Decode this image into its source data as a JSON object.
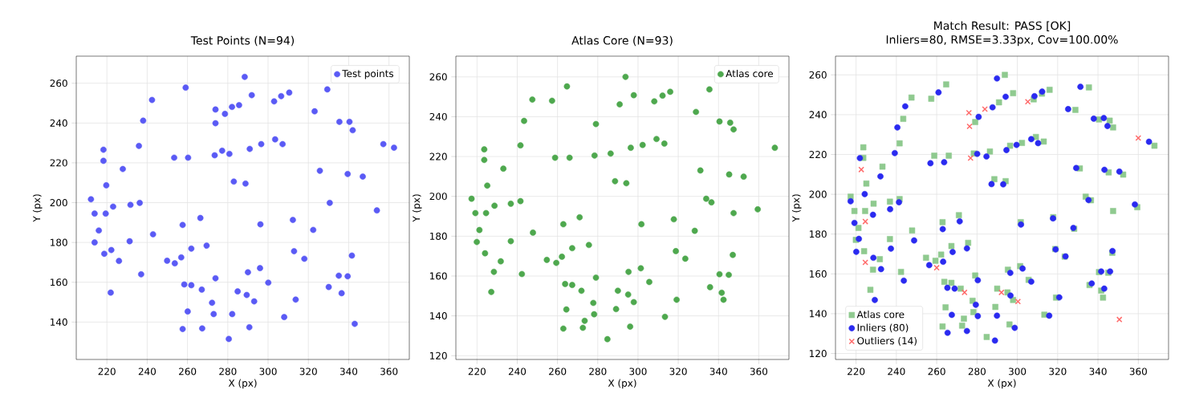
{
  "chart_data": [
    {
      "type": "scatter",
      "title": "Test Points (N=94)",
      "xlabel": "X (px)",
      "ylabel": "Y (px)",
      "xlim": [
        204.8,
        370.1
      ],
      "ylim": [
        121.2,
        273.6
      ],
      "xticks": [
        220,
        240,
        260,
        280,
        300,
        320,
        340,
        360
      ],
      "yticks": [
        140,
        160,
        180,
        200,
        220,
        240,
        260
      ],
      "grid": true,
      "legend": "top right",
      "series": [
        {
          "name": "Test points",
          "color": "#5a5af5",
          "marker": "circle",
          "x": [
            212.1,
            213.9,
            219.4,
            216.0,
            213.9,
            218.7,
            222.2,
            226.0,
            221.9,
            218.3,
            218.3,
            219.7,
            227.9,
            223.1,
            231.7,
            231.3,
            235.9,
            236.3,
            238.0,
            242.4,
            242.9,
            237.0,
            249.9,
            253.7,
            256.9,
            257.6,
            253.4,
            260.3,
            259.1,
            261.9,
            258.4,
            261.9,
            260.1,
            257.6,
            266.4,
            269.5,
            267.1,
            267.3,
            272.2,
            273.0,
            273.9,
            273.9,
            273.9,
            273.5,
            277.2,
            278.6,
            280.8,
            282.1,
            285.6,
            283.0,
            282.2,
            280.5,
            284.9,
            288.4,
            288.8,
            289.4,
            290.0,
            290.7,
            290.9,
            291.9,
            293.1,
            296.0,
            296.2,
            296.6,
            300.1,
            303.0,
            303.5,
            306.5,
            307.2,
            308.0,
            310.5,
            312.3,
            312.9,
            313.7,
            318.0,
            322.4,
            323.1,
            325.7,
            329.4,
            330.6,
            330.1,
            335.4,
            335.1,
            336.5,
            340.4,
            342.0,
            339.5,
            339.5,
            341.6,
            343.0,
            347.0,
            354.0,
            357.2,
            362.5
          ],
          "values": [
            201.7,
            194.5,
            194.5,
            186.0,
            180.0,
            174.3,
            176.2,
            170.7,
            154.8,
            226.6,
            221.0,
            208.7,
            216.9,
            198.0,
            198.9,
            180.6,
            228.5,
            199.9,
            241.2,
            251.6,
            184.1,
            164.0,
            170.8,
            169.5,
            172.5,
            188.8,
            222.6,
            222.6,
            257.8,
            176.9,
            158.9,
            158.5,
            145.3,
            136.5,
            192.3,
            178.4,
            156.3,
            136.8,
            149.7,
            144.0,
            162.0,
            246.8,
            239.9,
            223.8,
            226.1,
            244.6,
            224.5,
            248.1,
            249.0,
            210.6,
            144.0,
            131.5,
            155.4,
            263.2,
            209.6,
            153.6,
            165.0,
            137.4,
            227.0,
            254.0,
            150.4,
            167.1,
            189.1,
            229.4,
            159.8,
            250.9,
            231.8,
            253.5,
            229.4,
            142.5,
            255.3,
            191.3,
            175.6,
            151.3,
            171.8,
            186.3,
            245.9,
            216.0,
            256.9,
            199.9,
            157.6,
            240.6,
            163.3,
            154.5,
            240.6,
            236.4,
            214.4,
            163.0,
            173.4,
            139.1,
            213.1,
            196.1,
            229.4,
            227.6
          ]
        }
      ]
    },
    {
      "type": "scatter",
      "title": "Atlas Core (N=93)",
      "xlabel": "X (px)",
      "ylabel": "Y (px)",
      "xlim": [
        209.5,
        375
      ],
      "ylim": [
        118.1,
        270.4
      ],
      "xticks": [
        220,
        240,
        260,
        280,
        300,
        320,
        340,
        360
      ],
      "yticks": [
        120,
        140,
        160,
        180,
        200,
        220,
        240,
        260
      ],
      "grid": true,
      "legend": "top right",
      "series": [
        {
          "name": "Atlas core",
          "color": "#4ea84e",
          "marker": "circle",
          "x": [
            217.3,
            219.2,
            219.9,
            221.2,
            224.0,
            224.5,
            225.1,
            223.6,
            223.6,
            228.7,
            228.4,
            227.1,
            231.8,
            233.1,
            236.8,
            236.8,
            241.6,
            241.6,
            242.3,
            243.4,
            247.5,
            247.8,
            254.7,
            257.3,
            258.8,
            259.4,
            262.2,
            262.9,
            263.8,
            262.9,
            264.7,
            266.0,
            267.3,
            267.3,
            264.4,
            271.0,
            271.9,
            273.5,
            272.6,
            275.6,
            277.8,
            278.2,
            279.1,
            278.4,
            279.1,
            284.8,
            286.4,
            288.6,
            289.1,
            290.0,
            290.9,
            293.8,
            294.2,
            295.1,
            295.3,
            296.1,
            296.4,
            297.9,
            297.9,
            301.4,
            301.7,
            302.3,
            305.6,
            308.1,
            309.2,
            312.2,
            313.1,
            313.4,
            316.0,
            317.8,
            318.8,
            319.2,
            323.5,
            328.2,
            328.8,
            331.0,
            333.9,
            336.5,
            335.5,
            335.8,
            340.5,
            340.5,
            341.6,
            342.5,
            345.1,
            345.3,
            345.8,
            347.5,
            347.5,
            347.1,
            352.5,
            359.5,
            368.0
          ],
          "values": [
            198.8,
            191.6,
            177.1,
            183.1,
            171.4,
            191.6,
            205.4,
            223.6,
            218.3,
            195.3,
            162.1,
            152.0,
            167.4,
            213.9,
            196.3,
            177.5,
            225.6,
            197.6,
            161.0,
            237.9,
            248.6,
            181.8,
            168.1,
            248.0,
            219.4,
            166.6,
            169.7,
            186.0,
            156.0,
            133.6,
            255.2,
            219.4,
            174.0,
            155.5,
            143.2,
            189.5,
            152.6,
            137.5,
            134.0,
            175.6,
            146.5,
            140.8,
            159.2,
            220.5,
            236.3,
            128.3,
            221.5,
            207.6,
            143.4,
            152.6,
            246.2,
            260.0,
            206.6,
            150.7,
            162.1,
            134.6,
            224.4,
            146.9,
            250.8,
            163.9,
            186.0,
            225.8,
            157.0,
            247.7,
            228.8,
            250.6,
            226.5,
            139.5,
            252.5,
            188.5,
            172.5,
            148.1,
            168.7,
            182.7,
            242.4,
            213.0,
            198.8,
            197.0,
            253.7,
            154.4,
            237.6,
            160.9,
            151.6,
            148.1,
            160.6,
            211.0,
            237.0,
            233.6,
            191.6,
            170.6,
            209.9,
            193.5,
            224.4
          ]
        }
      ]
    },
    {
      "type": "scatter",
      "title": "Match Result: PASS [OK]",
      "subtitle": "Inliers=80, RMSE=3.33px, Cov=100.00%",
      "xlabel": "X (px)",
      "ylabel": "Y (px)",
      "xlim": [
        209.8,
        375
      ],
      "ylim": [
        117.0,
        269.4
      ],
      "xticks": [
        220,
        240,
        260,
        280,
        300,
        320,
        340,
        360
      ],
      "yticks": [
        120,
        140,
        160,
        180,
        200,
        220,
        240,
        260
      ],
      "grid": true,
      "legend": "bottom left",
      "series": [
        {
          "name": "Atlas core",
          "color": "#8fca8f",
          "marker": "square",
          "x": [
            217.3,
            219.2,
            219.9,
            221.2,
            224.0,
            224.5,
            225.1,
            223.6,
            223.6,
            228.7,
            228.4,
            227.1,
            231.8,
            233.1,
            236.8,
            236.8,
            241.6,
            241.6,
            242.3,
            243.4,
            247.5,
            247.8,
            254.7,
            257.3,
            258.8,
            259.4,
            262.2,
            262.9,
            263.8,
            262.9,
            264.7,
            266.0,
            267.3,
            267.3,
            264.4,
            271.0,
            271.9,
            273.5,
            272.6,
            275.6,
            277.8,
            278.2,
            279.1,
            278.4,
            279.1,
            284.8,
            286.4,
            288.6,
            289.1,
            290.0,
            290.9,
            293.8,
            294.2,
            295.1,
            295.3,
            296.1,
            296.4,
            297.9,
            297.9,
            301.4,
            301.7,
            302.3,
            305.6,
            308.1,
            309.2,
            312.2,
            313.1,
            313.4,
            316.0,
            317.8,
            318.8,
            319.2,
            323.5,
            328.2,
            328.8,
            331.0,
            333.9,
            336.5,
            335.5,
            335.8,
            340.5,
            340.5,
            341.6,
            342.5,
            345.1,
            345.3,
            345.8,
            347.5,
            347.5,
            347.1,
            352.5,
            359.5,
            368.0
          ],
          "values": [
            198.8,
            191.6,
            177.1,
            183.1,
            171.4,
            191.6,
            205.4,
            223.6,
            218.3,
            195.3,
            162.1,
            152.0,
            167.4,
            213.9,
            196.3,
            177.5,
            225.6,
            197.6,
            161.0,
            237.9,
            248.6,
            181.8,
            168.1,
            248.0,
            219.4,
            166.6,
            169.7,
            186.0,
            156.0,
            133.6,
            255.2,
            219.4,
            174.0,
            155.5,
            143.2,
            189.5,
            152.6,
            137.5,
            134.0,
            175.6,
            146.5,
            140.8,
            159.2,
            220.5,
            236.3,
            128.3,
            221.5,
            207.6,
            143.4,
            152.6,
            246.2,
            260.0,
            206.6,
            150.7,
            162.1,
            134.6,
            224.4,
            146.9,
            250.8,
            163.9,
            186.0,
            225.8,
            157.0,
            247.7,
            228.8,
            250.6,
            226.5,
            139.5,
            252.5,
            188.5,
            172.5,
            148.1,
            168.7,
            182.7,
            242.4,
            213.0,
            198.8,
            197.0,
            253.7,
            154.4,
            237.6,
            160.9,
            151.6,
            148.1,
            160.6,
            211.0,
            237.0,
            233.6,
            191.6,
            170.6,
            209.9,
            193.5,
            224.4
          ]
        },
        {
          "name": "Inliers (80)",
          "color": "#2a2af0",
          "marker": "circle",
          "x": [
            217.3,
            219.2,
            221.4,
            220.1,
            221.9,
            224.3,
            228.4,
            228.6,
            229.3,
            232.1,
            232.4,
            236.9,
            237.3,
            239.2,
            240.5,
            241.3,
            244.4,
            243.7,
            248.8,
            256.3,
            256.9,
            260.9,
            263.0,
            263.2,
            263.7,
            265.3,
            265.4,
            267.5,
            267.9,
            268.9,
            271.4,
            275.0,
            275.0,
            279.4,
            280.4,
            280.4,
            280.8,
            280.1,
            287.7,
            284.7,
            287.2,
            289.9,
            293.0,
            294.2,
            294.6,
            299.6,
            306.9,
            310.3,
            308.5,
            312.3,
            325.2,
            331.3,
            337.9,
            342.9,
            344.7,
            329.2,
            343.2,
            350.6,
            335.3,
            358.3,
            365.3,
            317.7,
            301.8,
            327.8,
            319.0,
            323.9,
            347.2,
            302.6,
            296.5,
            306.9,
            296.6,
            341.6,
            346.0,
            336.9,
            343.1,
            320.8,
            289.9,
            315.8,
            298.7,
            288.9
          ],
          "values": [
            196.5,
            185.6,
            177.6,
            171.1,
            218.2,
            200.1,
            189.7,
            168.1,
            146.9,
            209.0,
            162.4,
            192.5,
            172.7,
            220.7,
            233.6,
            196.0,
            244.2,
            156.6,
            176.8,
            164.4,
            215.6,
            251.2,
            182.5,
            166.1,
            216.1,
            153.0,
            130.4,
            139.4,
            171.0,
            152.6,
            186.4,
            131.3,
            172.8,
            144.5,
            138.8,
            156.8,
            238.9,
            220.3,
            243.7,
            219.0,
            205.1,
            258.2,
            205.0,
            249.0,
            222.2,
            224.8,
            227.7,
            225.7,
            249.3,
            251.6,
            242.8,
            254.0,
            238.0,
            238.3,
            234.3,
            213.2,
            212.3,
            211.4,
            197.1,
            194.9,
            226.4,
            187.9,
            184.8,
            183.1,
            172.3,
            168.8,
            171.5,
            162.7,
            160.5,
            156.1,
            149.1,
            161.2,
            161.2,
            155.2,
            152.6,
            148.2,
            139.0,
            139.0,
            132.9,
            126.5
          ]
        },
        {
          "name": "Outliers (14)",
          "color": "#ff6a6a",
          "marker": "cross",
          "x": [
            222.6,
            224.6,
            224.6,
            260.0,
            273.8,
            276.0,
            276.3,
            276.8,
            283.9,
            305.2,
            292.1,
            300.3,
            350.6,
            360.0
          ],
          "values": [
            212.4,
            186.3,
            165.8,
            163.1,
            150.7,
            241.0,
            234.1,
            218.2,
            242.8,
            246.5,
            150.7,
            146.1,
            137.1,
            228.3
          ]
        }
      ]
    }
  ]
}
